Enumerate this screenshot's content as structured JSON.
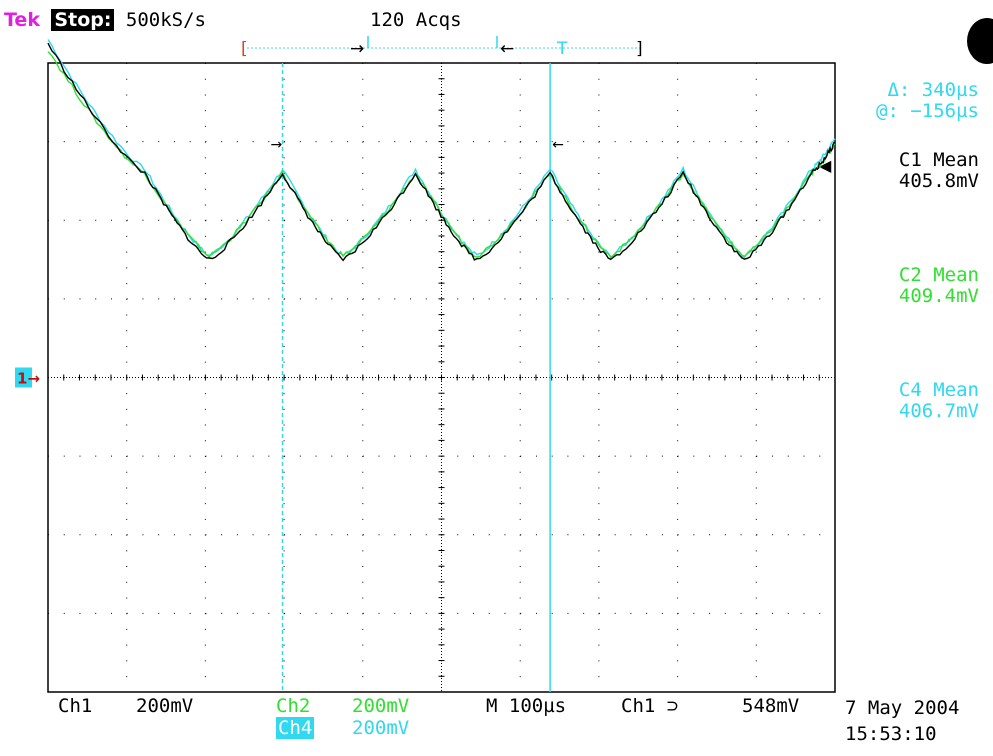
{
  "header": {
    "brand": "Tek",
    "status": "Stop:",
    "sample_rate": "500kS/s",
    "acquisitions": "120 Acqs"
  },
  "readouts": {
    "delta": "Δ: 340µs",
    "at": "@: −156µs",
    "c1_label": "C1 Mean",
    "c1_value": "405.8mV",
    "c2_label": "C2 Mean",
    "c2_value": "409.4mV",
    "c4_label": "C4 Mean",
    "c4_value": "406.7mV"
  },
  "bottom": {
    "ch1": "Ch1",
    "ch1_scale": "200mV",
    "ch2": "Ch2",
    "ch2_scale": "200mV",
    "ch4": "Ch4",
    "ch4_scale": "200mV",
    "timebase": "M  100µs",
    "trigger": "Ch1 ⊃",
    "trigger_level": "548mV",
    "date": "7 May 2004",
    "time": "15:53:10"
  },
  "colors": {
    "ch1": "#000000",
    "ch2": "#30e030",
    "ch4": "#30d8f0",
    "brand": "#e020e0"
  },
  "chart_data": {
    "type": "line",
    "xlabel": "",
    "ylabel": "",
    "xlim": [
      -0.5,
      0.5
    ],
    "ylim": [
      -0.8,
      0.8
    ],
    "x_unit": "ms",
    "y_unit": "V",
    "grid": true,
    "grid_divisions": [
      10,
      8
    ],
    "cursors_ms": [
      -0.202,
      0.138
    ],
    "peaks_ms": [
      -0.377,
      -0.202,
      -0.033,
      0.138,
      0.307,
      0.47
    ],
    "troughs_ms": [
      -0.295,
      -0.125,
      0.045,
      0.215,
      0.385
    ],
    "series": [
      {
        "name": "C1",
        "color": "#000000",
        "peak_V": 0.52,
        "trough_V": 0.3
      },
      {
        "name": "C2",
        "color": "#30e030",
        "peak_V": 0.52,
        "trough_V": 0.31
      },
      {
        "name": "C4",
        "color": "#30d8f0",
        "peak_V": 0.53,
        "trough_V": 0.31
      }
    ]
  }
}
